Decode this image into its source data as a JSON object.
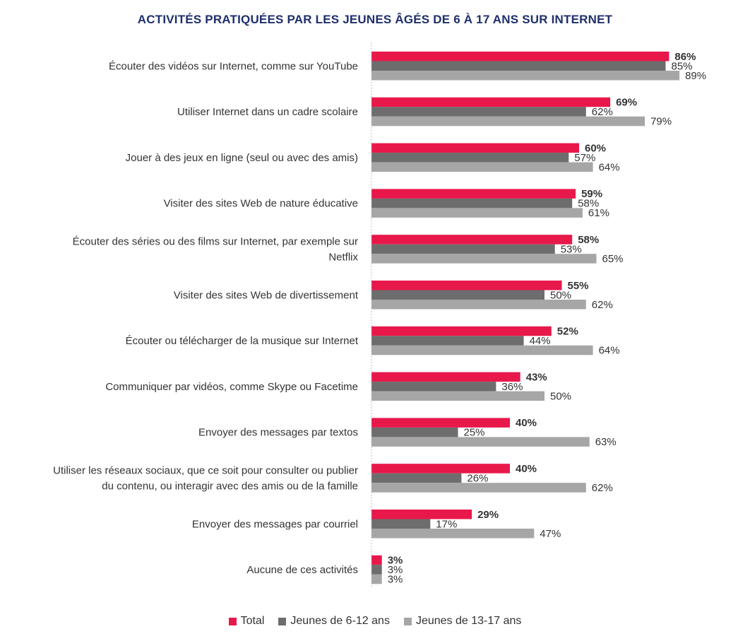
{
  "chart_data": {
    "type": "bar",
    "orientation": "horizontal",
    "title": "ACTIVITÉS PRATIQUÉES PAR LES JEUNES ÂGÉS DE 6 À 17 ANS SUR INTERNET",
    "categories": [
      [
        "Écouter des vidéos sur Internet, comme sur YouTube"
      ],
      [
        "Utiliser Internet dans un cadre scolaire"
      ],
      [
        "Jouer à des jeux en ligne (seul ou avec des amis)"
      ],
      [
        "Visiter des sites Web de nature éducative"
      ],
      [
        "Écouter des séries ou des films sur Internet, par exemple sur",
        "Netflix"
      ],
      [
        "Visiter des sites Web de divertissement"
      ],
      [
        "Écouter ou télécharger de la musique sur Internet"
      ],
      [
        "Communiquer par vidéos, comme Skype ou Facetime"
      ],
      [
        "Envoyer des messages par textos"
      ],
      [
        "Utiliser les réseaux sociaux, que ce soit pour consulter ou publier",
        "du contenu, ou interagir avec des amis ou de la famille"
      ],
      [
        "Envoyer des messages par courriel"
      ],
      [
        "Aucune de ces activités"
      ]
    ],
    "series": [
      {
        "name": "Total",
        "color": "#e8184a",
        "bold": true,
        "values": [
          86,
          69,
          60,
          59,
          58,
          55,
          52,
          43,
          40,
          40,
          29,
          3
        ],
        "labels": [
          "86%",
          "69%",
          "60%",
          "59%",
          "58%",
          "55%",
          "52%",
          "43%",
          "40%",
          "40%",
          "29%",
          "3%"
        ]
      },
      {
        "name": "Jeunes de 6-12 ans",
        "color": "#6d6d6d",
        "bold": false,
        "values": [
          85,
          62,
          57,
          58,
          53,
          50,
          44,
          36,
          25,
          26,
          17,
          3
        ],
        "labels": [
          "85%",
          "62%",
          "57%",
          "58%",
          "53%",
          "50%",
          "44%",
          "36%",
          "25%",
          "26%",
          "17%",
          "3%"
        ]
      },
      {
        "name": "Jeunes de 13-17 ans",
        "color": "#a6a6a6",
        "bold": false,
        "values": [
          89,
          79,
          64,
          61,
          65,
          62,
          64,
          50,
          63,
          62,
          47,
          3
        ],
        "labels": [
          "89%",
          "79%",
          "64%",
          "61%",
          "65%",
          "62%",
          "64%",
          "50%",
          "63%",
          "62%",
          "47%",
          "3%"
        ]
      }
    ],
    "xlim": [
      0,
      100
    ],
    "grid": false,
    "legend_position": "bottom"
  }
}
